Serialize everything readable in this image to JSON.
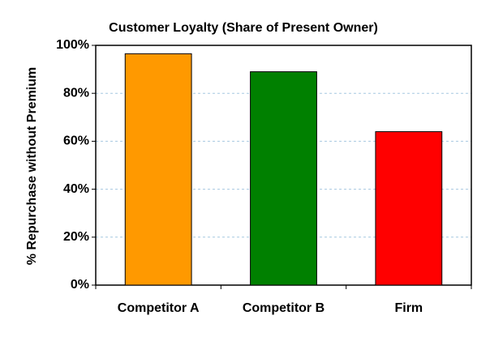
{
  "chart_data": {
    "type": "bar",
    "title": "Customer Loyalty (Share of Present Owner)",
    "y_label": "% Repurchase without Premium",
    "categories": [
      "Competitor A",
      "Competitor B",
      "Firm"
    ],
    "values": [
      96.5,
      89,
      64
    ],
    "colors": [
      "#ff9900",
      "#008000",
      "#ff0000"
    ],
    "ylim": [
      0,
      100
    ],
    "yticks": [
      {
        "value": 0,
        "label": "0%"
      },
      {
        "value": 20,
        "label": "20%"
      },
      {
        "value": 40,
        "label": "40%"
      },
      {
        "value": 60,
        "label": "60%"
      },
      {
        "value": 80,
        "label": "80%"
      },
      {
        "value": 100,
        "label": "100%"
      }
    ],
    "grid": true
  }
}
